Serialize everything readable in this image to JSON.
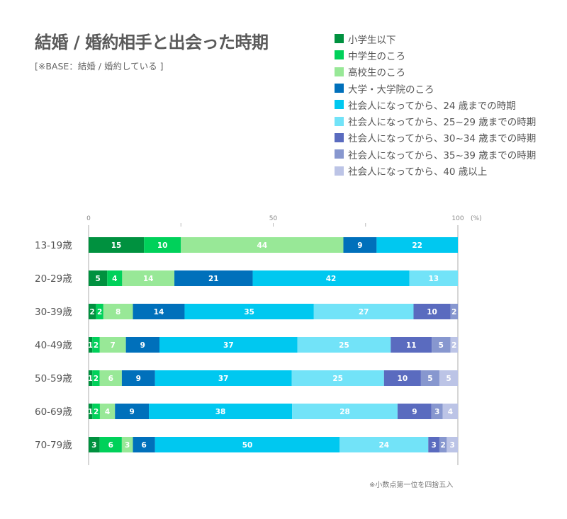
{
  "chart_data": {
    "type": "bar",
    "orientation": "horizontal",
    "stacked": true,
    "title": "結婚 / 婚約相手と出会った時期",
    "subtitle": "[※BASE：結婚 / 婚約している ]",
    "footnote": "※小数点第一位を四捨五入",
    "xlabel": "",
    "ylabel": "",
    "xlim": [
      0,
      100
    ],
    "x_ticks": [
      {
        "value": 0,
        "label": "0"
      },
      {
        "value": 25,
        "label": ""
      },
      {
        "value": 50,
        "label": "50"
      },
      {
        "value": 75,
        "label": ""
      },
      {
        "value": 100,
        "label": "100"
      }
    ],
    "x_unit": "(%)",
    "legend_position": "top-right",
    "categories": [
      "13-19歳",
      "20-29歳",
      "30-39歳",
      "40-49歳",
      "50-59歳",
      "60-69歳",
      "70-79歳"
    ],
    "series": [
      {
        "name": "小学生以下",
        "color": "#00913f",
        "values": [
          15,
          5,
          2,
          1,
          1,
          1,
          3
        ]
      },
      {
        "name": "中学生のころ",
        "color": "#00d15a",
        "values": [
          10,
          4,
          2,
          2,
          2,
          2,
          6
        ]
      },
      {
        "name": "高校生のころ",
        "color": "#98e897",
        "values": [
          44,
          14,
          8,
          7,
          6,
          4,
          3
        ]
      },
      {
        "name": "大学・大学院のころ",
        "color": "#0070bb",
        "values": [
          9,
          21,
          14,
          9,
          9,
          9,
          6
        ]
      },
      {
        "name": "社会人になってから、24 歳までの時期",
        "color": "#00c8f0",
        "values": [
          22,
          42,
          35,
          37,
          37,
          38,
          50
        ]
      },
      {
        "name": "社会人になってから、25~29 歳までの時期",
        "color": "#72e3f8",
        "values": [
          0,
          13,
          27,
          25,
          25,
          28,
          24
        ]
      },
      {
        "name": "社会人になってから、30~34 歳までの時期",
        "color": "#5a6bbf",
        "values": [
          0,
          0,
          10,
          11,
          10,
          9,
          3
        ]
      },
      {
        "name": "社会人になってから、35~39 歳までの時期",
        "color": "#8797cf",
        "values": [
          0,
          0,
          2,
          5,
          5,
          3,
          2
        ]
      },
      {
        "name": "社会人になってから、40 歳以上",
        "color": "#bcc4e6",
        "values": [
          0,
          0,
          0,
          2,
          5,
          4,
          3
        ]
      }
    ]
  }
}
